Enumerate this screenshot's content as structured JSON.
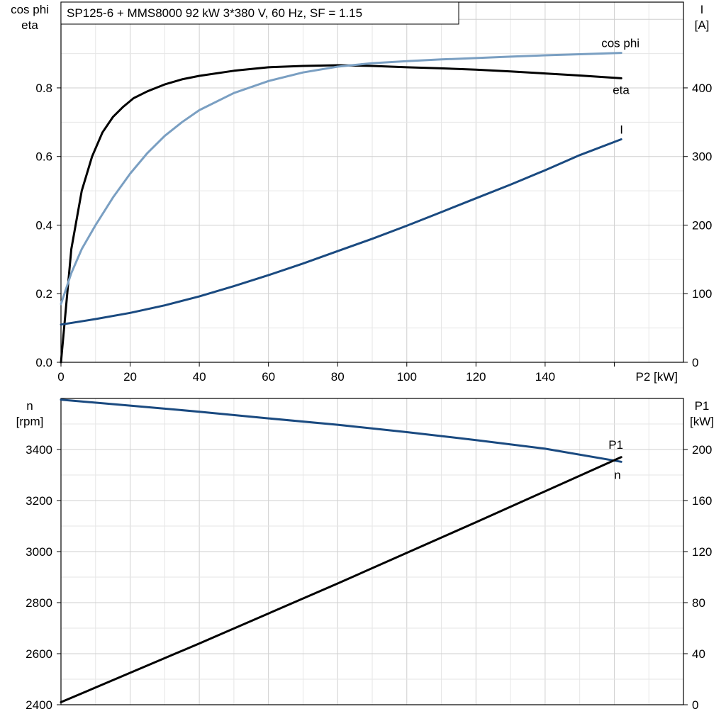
{
  "title": "SP125-6 + MMS8000   92 kW   3*380 V, 60 Hz, SF = 1.15",
  "colors": {
    "black": "#000000",
    "dark_blue": "#1a4a80",
    "light_blue": "#7a9fc2",
    "grid": "#cfcfcf"
  },
  "chart_data": [
    {
      "type": "line",
      "name": "top",
      "grid": true,
      "x_axis": {
        "label": "P2 [kW]",
        "range": [
          0,
          180
        ],
        "ticks": [
          0,
          20,
          40,
          60,
          80,
          100,
          120,
          140
        ]
      },
      "y_left": {
        "label_lines": [
          "cos phi",
          "eta"
        ],
        "range": [
          0,
          1.05
        ],
        "ticks": [
          0.0,
          0.2,
          0.4,
          0.6,
          0.8
        ],
        "tick_labels": [
          "0.0",
          "0.2",
          "0.4",
          "0.6",
          "0.8"
        ]
      },
      "y_right": {
        "label_lines": [
          "I",
          "[A]"
        ],
        "range": [
          0,
          525
        ],
        "ticks": [
          0,
          100,
          200,
          300,
          400
        ],
        "tick_labels": [
          "0",
          "100",
          "200",
          "300",
          "400"
        ]
      },
      "series": [
        {
          "name": "eta",
          "axis": "left",
          "color": "#000000",
          "x": [
            0,
            3,
            6,
            9,
            12,
            15,
            18,
            21,
            25,
            30,
            35,
            40,
            50,
            60,
            70,
            80,
            90,
            100,
            110,
            120,
            130,
            140,
            150,
            162
          ],
          "y": [
            0,
            0.33,
            0.5,
            0.6,
            0.67,
            0.715,
            0.745,
            0.77,
            0.79,
            0.81,
            0.825,
            0.835,
            0.85,
            0.86,
            0.864,
            0.866,
            0.864,
            0.86,
            0.857,
            0.853,
            0.848,
            0.842,
            0.836,
            0.828
          ]
        },
        {
          "name": "cos phi",
          "axis": "left",
          "color": "#7a9fc2",
          "x": [
            0,
            3,
            6,
            10,
            15,
            20,
            25,
            30,
            35,
            40,
            50,
            60,
            70,
            80,
            90,
            100,
            110,
            120,
            130,
            140,
            150,
            162
          ],
          "y": [
            0.17,
            0.26,
            0.33,
            0.4,
            0.48,
            0.55,
            0.61,
            0.66,
            0.7,
            0.735,
            0.785,
            0.82,
            0.845,
            0.862,
            0.872,
            0.878,
            0.883,
            0.887,
            0.891,
            0.895,
            0.898,
            0.902
          ]
        },
        {
          "name": "I",
          "axis": "right",
          "color": "#1a4a80",
          "x": [
            0,
            10,
            20,
            30,
            40,
            50,
            60,
            70,
            80,
            90,
            100,
            110,
            120,
            130,
            140,
            150,
            162
          ],
          "y": [
            55,
            63,
            72,
            83,
            96,
            111,
            127,
            144,
            162,
            180,
            199,
            219,
            239,
            259,
            280,
            302,
            325
          ]
        }
      ]
    },
    {
      "type": "line",
      "name": "bottom",
      "grid": true,
      "x_axis": {
        "range": [
          0,
          180
        ]
      },
      "y_left": {
        "label_lines": [
          "n",
          "[rpm]"
        ],
        "range": [
          2400,
          3600
        ],
        "ticks": [
          2400,
          2600,
          2800,
          3000,
          3200,
          3400
        ],
        "tick_labels": [
          "2400",
          "2600",
          "2800",
          "3000",
          "3200",
          "3400"
        ]
      },
      "y_right": {
        "label_lines": [
          "P1",
          "[kW]"
        ],
        "range": [
          0,
          240
        ],
        "ticks": [
          0,
          40,
          80,
          120,
          160,
          200
        ],
        "tick_labels": [
          "0",
          "40",
          "80",
          "120",
          "160",
          "200"
        ]
      },
      "series": [
        {
          "name": "n",
          "axis": "left",
          "color": "#1a4a80",
          "x": [
            0,
            20,
            40,
            60,
            80,
            100,
            120,
            140,
            162
          ],
          "y": [
            3595,
            3572,
            3548,
            3522,
            3497,
            3468,
            3437,
            3403,
            3352
          ]
        },
        {
          "name": "P1",
          "axis": "right",
          "color": "#000000",
          "x": [
            0,
            40,
            80,
            120,
            162
          ],
          "y": [
            2,
            48,
            95,
            143,
            194
          ]
        }
      ]
    }
  ]
}
